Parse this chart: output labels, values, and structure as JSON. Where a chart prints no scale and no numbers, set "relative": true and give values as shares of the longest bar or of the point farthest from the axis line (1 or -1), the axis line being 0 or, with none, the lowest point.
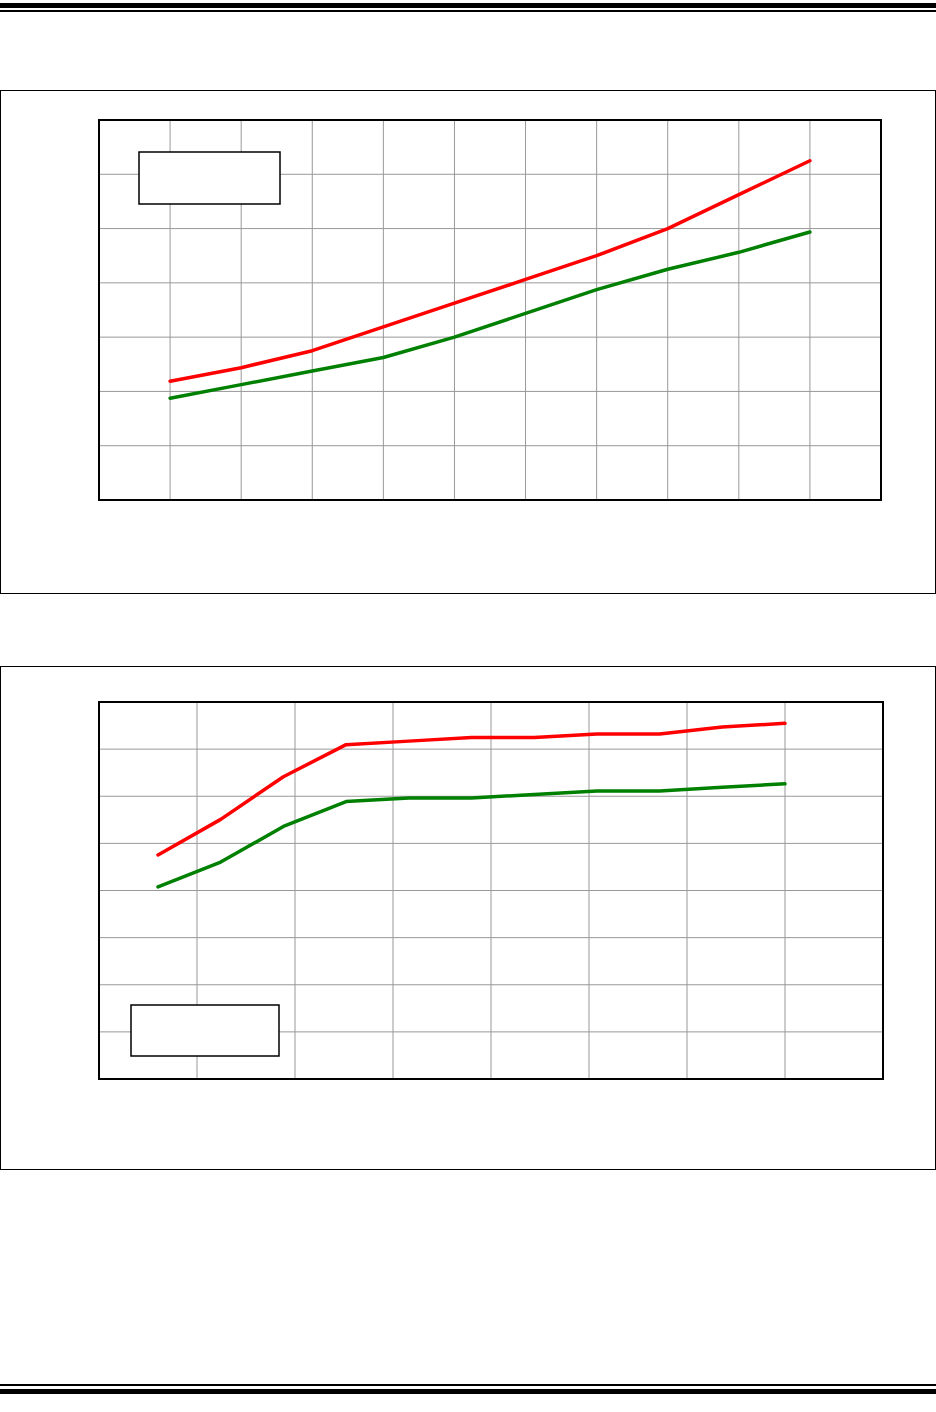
{
  "chart_data": [
    {
      "type": "line",
      "relative": true,
      "categories": [
        null,
        null,
        null,
        null,
        null,
        null,
        null,
        null,
        null,
        null
      ],
      "grid": true,
      "marker": "none",
      "line_style": "solid",
      "series": [
        {
          "color": "#ff0000",
          "values": [
            0.35,
            0.39,
            0.44,
            0.51,
            0.58,
            0.65,
            0.72,
            0.8,
            0.9,
            1
          ]
        },
        {
          "color": "#008000",
          "values": [
            0.3,
            0.34,
            0.38,
            0.42,
            0.48,
            0.55,
            0.62,
            0.68,
            0.73,
            0.79
          ]
        }
      ]
    },
    {
      "type": "line",
      "relative": true,
      "categories": [
        null,
        null,
        null,
        null,
        null,
        null,
        null,
        null,
        null,
        null,
        null
      ],
      "grid": true,
      "marker": "none",
      "line_style": "solid",
      "series": [
        {
          "color": "#ff0000",
          "values": [
            0.63,
            0.73,
            0.85,
            0.94,
            0.95,
            0.96,
            0.96,
            0.97,
            0.97,
            0.99,
            1
          ]
        },
        {
          "color": "#008000",
          "values": [
            0.54,
            0.61,
            0.71,
            0.78,
            0.79,
            0.79,
            0.8,
            0.81,
            0.81,
            0.82,
            0.83
          ]
        }
      ]
    }
  ]
}
